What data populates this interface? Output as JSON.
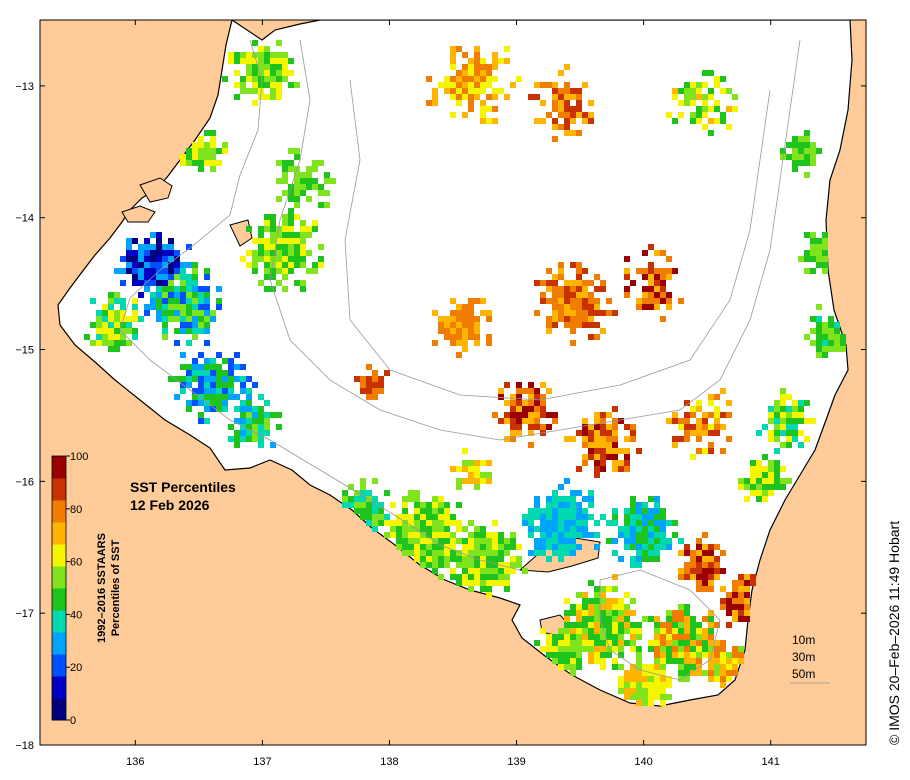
{
  "map": {
    "title": "SST Percentiles",
    "date": "12 Feb 2026",
    "x_ticks": [
      "136",
      "137",
      "138",
      "139",
      "140",
      "141"
    ],
    "y_ticks": [
      "−13",
      "−14",
      "−15",
      "−16",
      "−17",
      "−18"
    ],
    "x_values": [
      136,
      137,
      138,
      139,
      140,
      141
    ],
    "y_values": [
      -13,
      -14,
      -15,
      -16,
      -17,
      -18
    ],
    "lon_range": [
      135.25,
      141.75
    ],
    "lat_range": [
      -18.0,
      -12.5
    ]
  },
  "colorbar": {
    "label_line1": "1992–2016 SSTAARS",
    "label_line2": "Percentiles of SST",
    "ticks": [
      "0",
      "20",
      "40",
      "60",
      "80",
      "100"
    ],
    "tick_values": [
      0,
      20,
      40,
      60,
      80,
      100
    ],
    "colors": [
      "#00007f",
      "#0000c4",
      "#0050ff",
      "#00a4ff",
      "#00d8b0",
      "#1ec31e",
      "#7fe31e",
      "#f5f500",
      "#ffb400",
      "#f07d00",
      "#c83200",
      "#9b0000"
    ]
  },
  "depth_legend": {
    "items": [
      "10m",
      "30m",
      "50m"
    ]
  },
  "credit": "© IMOS 20–Feb–2026 11:49 Hobart",
  "colors": {
    "land": "#ffcc99",
    "ocean_nodata": "#ffffff",
    "coastline": "#000000",
    "isobath": "#999999"
  }
}
